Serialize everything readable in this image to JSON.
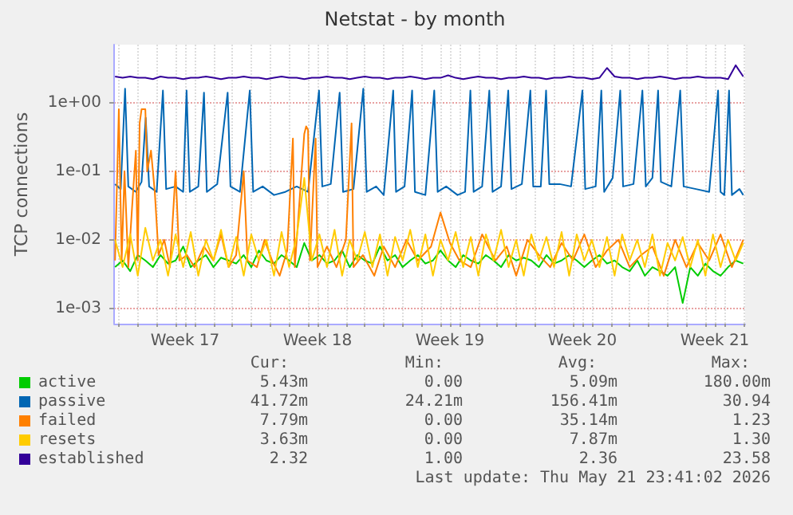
{
  "chart_data": {
    "type": "line",
    "title": "Netstat - by month",
    "ylabel": "TCP connections",
    "log": "y",
    "grid": true,
    "legend": "bottom",
    "marker": "none",
    "line_style": "solid",
    "xlim": [
      "2026-04-18T18:00",
      "2026-05-22T02:24"
    ],
    "xticks": [
      {
        "value": "2026-04-19",
        "label": null
      },
      {
        "value": "2026-04-20",
        "label": null
      },
      {
        "value": "2026-04-21",
        "label": null
      },
      {
        "value": "2026-04-22",
        "label": null
      },
      {
        "value": "2026-04-22T12:00",
        "label": "Week 17"
      },
      {
        "value": "2026-04-23",
        "label": null
      },
      {
        "value": "2026-04-24",
        "label": null
      },
      {
        "value": "2026-04-25",
        "label": null
      },
      {
        "value": "2026-04-26",
        "label": null
      },
      {
        "value": "2026-04-27",
        "label": null
      },
      {
        "value": "2026-04-28",
        "label": null
      },
      {
        "value": "2026-04-29",
        "label": null
      },
      {
        "value": "2026-04-29T12:00",
        "label": "Week 18"
      },
      {
        "value": "2026-04-30",
        "label": null
      },
      {
        "value": "2026-05-01",
        "label": null
      },
      {
        "value": "2026-05-02",
        "label": null
      },
      {
        "value": "2026-05-03",
        "label": null
      },
      {
        "value": "2026-05-04",
        "label": null
      },
      {
        "value": "2026-05-05",
        "label": null
      },
      {
        "value": "2026-05-06",
        "label": null
      },
      {
        "value": "2026-05-06T12:00",
        "label": "Week 19"
      },
      {
        "value": "2026-05-07",
        "label": null
      },
      {
        "value": "2026-05-08",
        "label": null
      },
      {
        "value": "2026-05-09",
        "label": null
      },
      {
        "value": "2026-05-10",
        "label": null
      },
      {
        "value": "2026-05-11",
        "label": null
      },
      {
        "value": "2026-05-12",
        "label": null
      },
      {
        "value": "2026-05-13",
        "label": null
      },
      {
        "value": "2026-05-13T12:00",
        "label": "Week 20"
      },
      {
        "value": "2026-05-14",
        "label": null
      },
      {
        "value": "2026-05-15",
        "label": null
      },
      {
        "value": "2026-05-16",
        "label": null
      },
      {
        "value": "2026-05-17",
        "label": null
      },
      {
        "value": "2026-05-18",
        "label": null
      },
      {
        "value": "2026-05-19",
        "label": null
      },
      {
        "value": "2026-05-20",
        "label": null
      },
      {
        "value": "2026-05-20T12:00",
        "label": "Week 21"
      },
      {
        "value": "2026-05-21",
        "label": null
      },
      {
        "value": "2026-05-22",
        "label": null
      }
    ],
    "ylim": [
      0.0006,
      7
    ],
    "yticks": [
      {
        "value": 0.001,
        "label": "1e-03"
      },
      {
        "value": 0.01,
        "label": "1e-02"
      },
      {
        "value": 0.1,
        "label": "1e-01"
      },
      {
        "value": 1,
        "label": "1e+00"
      }
    ],
    "x": [
      "2026-04-18T19:12",
      "2026-04-19T04:48",
      "2026-04-19T14:24",
      "2026-04-20T00:00",
      "2026-04-20T09:36",
      "2026-04-20T19:12",
      "2026-04-21T04:48",
      "2026-04-21T14:24",
      "2026-04-22T00:00",
      "2026-04-22T09:36",
      "2026-04-22T19:12",
      "2026-04-23T04:48",
      "2026-04-23T14:24",
      "2026-04-24T00:00",
      "2026-04-24T09:36",
      "2026-04-24T19:12",
      "2026-04-25T04:48",
      "2026-04-25T14:24",
      "2026-04-26T00:00",
      "2026-04-26T09:36",
      "2026-04-26T19:12",
      "2026-04-27T04:48",
      "2026-04-27T14:24",
      "2026-04-28T00:00",
      "2026-04-28T09:36",
      "2026-04-28T19:12",
      "2026-04-29T04:48",
      "2026-04-29T14:24",
      "2026-04-30T00:00",
      "2026-04-30T09:36",
      "2026-04-30T19:12",
      "2026-05-01T04:48",
      "2026-05-01T14:24",
      "2026-05-02T00:00",
      "2026-05-02T09:36",
      "2026-05-02T19:12",
      "2026-05-03T04:48",
      "2026-05-03T14:24",
      "2026-05-04T00:00",
      "2026-05-04T09:36",
      "2026-05-04T19:12",
      "2026-05-05T04:48",
      "2026-05-05T14:24",
      "2026-05-06T00:00",
      "2026-05-06T09:36",
      "2026-05-06T19:12",
      "2026-05-07T04:48",
      "2026-05-07T14:24",
      "2026-05-08T00:00",
      "2026-05-08T09:36",
      "2026-05-08T19:12",
      "2026-05-09T04:48",
      "2026-05-09T14:24",
      "2026-05-10T00:00",
      "2026-05-10T09:36",
      "2026-05-10T19:12",
      "2026-05-11T04:48",
      "2026-05-11T14:24",
      "2026-05-12T00:00",
      "2026-05-12T09:36",
      "2026-05-12T19:12",
      "2026-05-13T04:48",
      "2026-05-13T14:24",
      "2026-05-14T00:00",
      "2026-05-14T09:36",
      "2026-05-14T19:12",
      "2026-05-15T04:48",
      "2026-05-15T14:24",
      "2026-05-16T00:00",
      "2026-05-16T09:36",
      "2026-05-16T19:12",
      "2026-05-17T04:48",
      "2026-05-17T14:24",
      "2026-05-18T00:00",
      "2026-05-18T09:36",
      "2026-05-18T19:12",
      "2026-05-19T04:48",
      "2026-05-19T14:24",
      "2026-05-20T00:00",
      "2026-05-20T09:36",
      "2026-05-20T19:12",
      "2026-05-21T04:48",
      "2026-05-21T14:24",
      "2026-05-22T00:00"
    ],
    "series": [
      {
        "name": "active",
        "color": "#00cc00",
        "values": [
          0.004,
          0.005,
          0.0035,
          0.006,
          0.005,
          0.004,
          0.006,
          0.0045,
          0.005,
          0.008,
          0.004,
          0.005,
          0.006,
          0.004,
          0.0055,
          0.005,
          0.0045,
          0.006,
          0.004,
          0.007,
          0.005,
          0.0045,
          0.006,
          0.005,
          0.004,
          0.009,
          0.005,
          0.006,
          0.0045,
          0.005,
          0.007,
          0.004,
          0.006,
          0.005,
          0.0045,
          0.008,
          0.005,
          0.006,
          0.004,
          0.005,
          0.006,
          0.0045,
          0.005,
          0.007,
          0.005,
          0.004,
          0.006,
          0.005,
          0.0045,
          0.006,
          0.005,
          0.004,
          0.006,
          0.005,
          0.0055,
          0.005,
          0.004,
          0.006,
          0.0045,
          0.005,
          0.006,
          0.005,
          0.004,
          0.005,
          0.006,
          0.0045,
          0.005,
          0.004,
          0.0035,
          0.005,
          0.003,
          0.004,
          0.0035,
          0.003,
          0.004,
          0.0012,
          0.004,
          0.003,
          0.0045,
          0.0035,
          0.003,
          0.004,
          0.005,
          0.0045
        ]
      },
      {
        "name": "passive",
        "color": "#0066b3",
        "x": [
          "2026-04-18T19:12",
          "2026-04-19T02:24",
          "2026-04-19T07:55",
          "2026-04-19T12:00",
          "2026-04-19T21:36",
          "2026-04-20T04:48",
          "2026-04-20T10:05",
          "2026-04-20T14:24",
          "2026-04-21T00:00",
          "2026-04-21T07:55",
          "2026-04-21T12:00",
          "2026-04-22T00:00",
          "2026-04-22T09:36",
          "2026-04-22T13:55",
          "2026-04-22T18:00",
          "2026-04-23T04:48",
          "2026-04-23T12:00",
          "2026-04-23T15:36",
          "2026-04-24T04:48",
          "2026-04-24T18:00",
          "2026-04-24T21:36",
          "2026-04-25T09:36",
          "2026-04-25T22:05",
          "2026-04-26T02:24",
          "2026-04-26T14:24",
          "2026-04-27T04:48",
          "2026-04-27T19:12",
          "2026-04-28T09:36",
          "2026-04-29T00:00",
          "2026-04-29T13:55",
          "2026-04-29T18:00",
          "2026-04-30T04:48",
          "2026-04-30T16:05",
          "2026-04-30T20:24",
          "2026-05-01T09:36",
          "2026-05-01T22:05",
          "2026-05-02T02:24",
          "2026-05-02T14:24",
          "2026-05-03T00:00",
          "2026-05-03T12:00",
          "2026-05-03T15:36",
          "2026-05-04T02:24",
          "2026-05-04T12:00",
          "2026-05-04T15:36",
          "2026-05-05T04:48",
          "2026-05-05T16:05",
          "2026-05-05T20:24",
          "2026-05-06T07:12",
          "2026-05-06T21:36",
          "2026-05-07T07:12",
          "2026-05-07T13:55",
          "2026-05-07T18:00",
          "2026-05-08T04:48",
          "2026-05-08T13:55",
          "2026-05-08T18:00",
          "2026-05-09T04:48",
          "2026-05-09T13:55",
          "2026-05-09T18:00",
          "2026-05-10T07:12",
          "2026-05-10T18:00",
          "2026-05-10T21:36",
          "2026-05-11T07:12",
          "2026-05-11T13:55",
          "2026-05-11T18:00",
          "2026-05-12T07:12",
          "2026-05-12T21:36",
          "2026-05-13T12:00",
          "2026-05-13T15:36",
          "2026-05-14T04:48",
          "2026-05-14T12:00",
          "2026-05-14T15:36",
          "2026-05-15T02:24",
          "2026-05-15T12:00",
          "2026-05-15T15:36",
          "2026-05-16T04:48",
          "2026-05-16T16:05",
          "2026-05-16T20:24",
          "2026-05-17T04:48",
          "2026-05-17T12:00",
          "2026-05-17T15:36",
          "2026-05-18T04:48",
          "2026-05-18T16:05",
          "2026-05-18T20:24",
          "2026-05-19T12:00",
          "2026-05-20T04:48",
          "2026-05-20T16:05",
          "2026-05-20T19:12",
          "2026-05-21T00:00",
          "2026-05-21T06:00",
          "2026-05-21T09:36",
          "2026-05-21T19:12",
          "2026-05-22T00:00"
        ],
        "values": [
          0.065,
          0.055,
          1.6,
          0.06,
          0.05,
          0.07,
          0.6,
          0.06,
          0.05,
          1.5,
          0.055,
          0.06,
          0.05,
          1.5,
          0.05,
          0.06,
          1.4,
          0.05,
          0.065,
          1.4,
          0.06,
          0.05,
          1.5,
          0.05,
          0.06,
          0.045,
          0.05,
          0.06,
          0.05,
          1.5,
          0.06,
          0.065,
          1.4,
          0.05,
          0.055,
          1.6,
          0.05,
          0.06,
          0.045,
          1.5,
          0.05,
          0.06,
          1.5,
          0.05,
          0.045,
          1.5,
          0.05,
          0.06,
          0.045,
          0.05,
          1.5,
          0.05,
          0.06,
          1.5,
          0.05,
          0.06,
          1.5,
          0.055,
          0.065,
          1.5,
          0.06,
          0.06,
          1.5,
          0.065,
          0.065,
          0.06,
          1.5,
          0.055,
          0.06,
          1.5,
          0.05,
          0.08,
          1.5,
          0.06,
          0.065,
          1.5,
          0.06,
          0.08,
          1.5,
          0.07,
          0.06,
          1.5,
          0.06,
          0.055,
          0.05,
          1.5,
          0.05,
          0.045,
          1.5,
          0.045,
          0.055,
          0.045
        ]
      },
      {
        "name": "failed",
        "color": "#ff8000",
        "x": [
          "2026-04-18T19:12",
          "2026-04-19T00:00",
          "2026-04-19T03:36",
          "2026-04-19T07:12",
          "2026-04-19T12:00",
          "2026-04-19T16:48",
          "2026-04-19T21:36",
          "2026-04-20T00:00",
          "2026-04-20T02:24",
          "2026-04-20T04:48",
          "2026-04-20T09:36",
          "2026-04-20T12:00",
          "2026-04-20T16:48",
          "2026-04-20T21:36",
          "2026-04-21T02:24",
          "2026-04-21T09:36",
          "2026-04-21T16:48",
          "2026-04-22T00:00",
          "2026-04-22T04:48",
          "2026-04-22T14:24",
          "2026-04-23T00:00",
          "2026-04-23T12:00",
          "2026-04-24T00:00",
          "2026-04-24T09:36",
          "2026-04-24T19:12",
          "2026-04-25T04:48",
          "2026-04-25T14:24",
          "2026-04-25T19:12",
          "2026-04-26T07:12",
          "2026-04-26T16:48",
          "2026-04-27T02:24",
          "2026-04-27T12:00",
          "2026-04-27T21:36",
          "2026-04-28T04:48",
          "2026-04-28T07:12",
          "2026-04-28T19:12",
          "2026-04-28T21:36",
          "2026-04-29T00:00",
          "2026-04-29T02:24",
          "2026-04-29T09:36",
          "2026-04-29T12:00",
          "2026-04-30T00:00",
          "2026-04-30T12:00",
          "2026-05-01T00:00",
          "2026-05-01T07:12",
          "2026-05-01T09:36",
          "2026-05-01T21:36",
          "2026-05-02T12:00",
          "2026-05-03T00:00",
          "2026-05-03T14:24",
          "2026-05-04T04:48",
          "2026-05-04T19:12",
          "2026-05-05T12:00",
          "2026-05-06T00:00",
          "2026-05-06T12:00",
          "2026-05-07T00:00",
          "2026-05-07T14:24",
          "2026-05-08T04:48",
          "2026-05-08T21:36",
          "2026-05-09T12:00",
          "2026-05-10T00:00",
          "2026-05-10T14:24",
          "2026-05-11T04:48",
          "2026-05-11T19:12",
          "2026-05-12T09:36",
          "2026-05-13T00:00",
          "2026-05-13T14:24",
          "2026-05-14T04:48",
          "2026-05-14T19:12",
          "2026-05-15T09:36",
          "2026-05-16T00:00",
          "2026-05-16T14:24",
          "2026-05-17T04:48",
          "2026-05-17T19:12",
          "2026-05-18T09:36",
          "2026-05-19T00:00",
          "2026-05-19T14:24",
          "2026-05-20T04:48",
          "2026-05-20T19:12",
          "2026-05-21T09:36",
          "2026-05-22T00:00"
        ],
        "values": [
          0.005,
          0.8,
          0.005,
          0.1,
          0.004,
          0.03,
          0.2,
          0.005,
          0.5,
          0.8,
          0.8,
          0.1,
          0.2,
          0.05,
          0.006,
          0.01,
          0.004,
          0.1,
          0.005,
          0.006,
          0.004,
          0.008,
          0.005,
          0.012,
          0.004,
          0.006,
          0.1,
          0.005,
          0.004,
          0.01,
          0.005,
          0.003,
          0.007,
          0.3,
          0.004,
          0.35,
          0.45,
          0.4,
          0.005,
          0.3,
          0.004,
          0.008,
          0.004,
          0.01,
          0.5,
          0.004,
          0.006,
          0.003,
          0.008,
          0.004,
          0.01,
          0.005,
          0.008,
          0.025,
          0.009,
          0.005,
          0.004,
          0.012,
          0.005,
          0.008,
          0.003,
          0.01,
          0.006,
          0.004,
          0.009,
          0.005,
          0.012,
          0.004,
          0.007,
          0.01,
          0.004,
          0.006,
          0.008,
          0.003,
          0.01,
          0.004,
          0.009,
          0.005,
          0.012,
          0.004,
          0.01
        ]
      },
      {
        "name": "resets",
        "color": "#ffcc00",
        "values": [
          0.01,
          0.004,
          0.012,
          0.003,
          0.015,
          0.005,
          0.01,
          0.003,
          0.012,
          0.004,
          0.013,
          0.003,
          0.01,
          0.005,
          0.014,
          0.004,
          0.011,
          0.003,
          0.012,
          0.005,
          0.01,
          0.003,
          0.013,
          0.004,
          0.011,
          0.08,
          0.005,
          0.012,
          0.004,
          0.014,
          0.003,
          0.01,
          0.005,
          0.013,
          0.004,
          0.012,
          0.003,
          0.011,
          0.005,
          0.014,
          0.004,
          0.012,
          0.003,
          0.01,
          0.005,
          0.013,
          0.004,
          0.011,
          0.003,
          0.012,
          0.005,
          0.014,
          0.004,
          0.01,
          0.003,
          0.012,
          0.005,
          0.011,
          0.004,
          0.013,
          0.003,
          0.012,
          0.005,
          0.01,
          0.004,
          0.011,
          0.003,
          0.012,
          0.005,
          0.01,
          0.004,
          0.012,
          0.003,
          0.009,
          0.005,
          0.011,
          0.004,
          0.01,
          0.003,
          0.012,
          0.004,
          0.01,
          0.005,
          0.009
        ]
      },
      {
        "name": "established",
        "color": "#330099",
        "values": [
          2.4,
          2.3,
          2.4,
          2.3,
          2.3,
          2.2,
          2.4,
          2.3,
          2.3,
          2.2,
          2.3,
          2.3,
          2.4,
          2.3,
          2.2,
          2.3,
          2.3,
          2.4,
          2.3,
          2.3,
          2.2,
          2.3,
          2.4,
          2.3,
          2.3,
          2.2,
          2.3,
          2.3,
          2.4,
          2.3,
          2.3,
          2.2,
          2.3,
          2.4,
          2.3,
          2.3,
          2.2,
          2.3,
          2.3,
          2.4,
          2.3,
          2.2,
          2.3,
          2.3,
          2.5,
          2.3,
          2.2,
          2.3,
          2.4,
          2.3,
          2.3,
          2.2,
          2.3,
          2.3,
          2.4,
          2.3,
          2.3,
          2.2,
          2.3,
          2.3,
          2.4,
          2.3,
          2.3,
          2.2,
          2.3,
          3.2,
          2.4,
          2.3,
          2.3,
          2.2,
          2.3,
          2.3,
          2.4,
          2.3,
          2.2,
          2.3,
          2.3,
          2.4,
          2.3,
          2.3,
          2.3,
          2.2,
          3.5,
          2.4
        ]
      }
    ],
    "annotations": [
      "Cur:",
      "Min:",
      "Avg:",
      "Max:",
      "5.43m",
      "0.00",
      "5.09m",
      "180.00m",
      "41.72m",
      "24.21m",
      "156.41m",
      "30.94",
      "7.79m",
      "0.00",
      "35.14m",
      "1.23",
      "3.63m",
      "0.00",
      "7.87m",
      "1.30",
      "2.32",
      "1.00",
      "2.36",
      "23.58",
      "Last update: Thu May 21 23:41:02 2026"
    ]
  }
}
